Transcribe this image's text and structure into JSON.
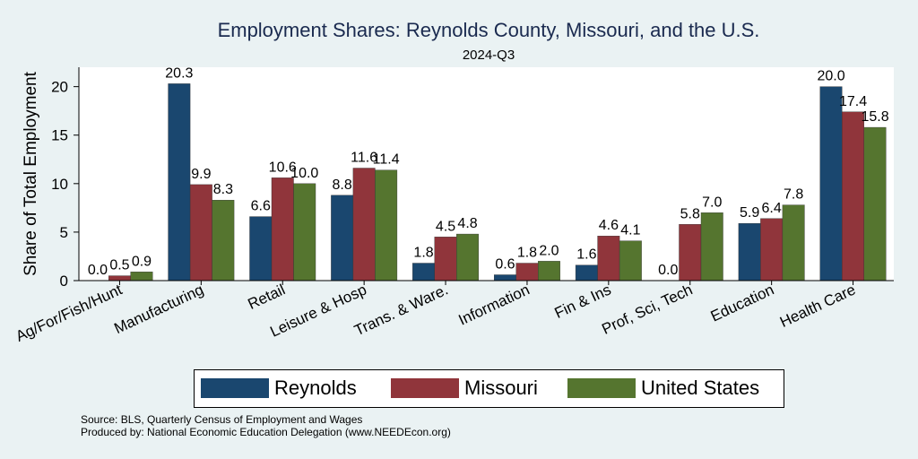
{
  "chart_data": {
    "type": "bar",
    "title": "Employment Shares: Reynolds County, Missouri, and the U.S.",
    "subtitle": "2024-Q3",
    "ylabel": "Share of Total Employment",
    "xlabel": "",
    "ylim": [
      0,
      22
    ],
    "yticks": [
      0,
      5,
      10,
      15,
      20
    ],
    "categories": [
      "Ag/For/Fish/Hunt",
      "Manufacturing",
      "Retail",
      "Leisure & Hosp",
      "Trans. & Ware.",
      "Information",
      "Fin & Ins",
      "Prof, Sci, Tech",
      "Education",
      "Health Care"
    ],
    "series": [
      {
        "name": "Reynolds",
        "color": "#1a476f",
        "values": [
          0.0,
          20.3,
          6.6,
          8.8,
          1.8,
          0.6,
          1.6,
          0.0,
          5.9,
          20.0
        ]
      },
      {
        "name": "Missouri",
        "color": "#90353b",
        "values": [
          0.5,
          9.9,
          10.6,
          11.6,
          4.5,
          1.8,
          4.6,
          5.8,
          6.4,
          17.4
        ]
      },
      {
        "name": "United States",
        "color": "#55752f",
        "values": [
          0.9,
          8.3,
          10.0,
          11.4,
          4.8,
          2.0,
          4.1,
          7.0,
          7.8,
          15.8
        ]
      }
    ],
    "legend_position": "bottom",
    "grid": false
  },
  "source": {
    "line1": "Source: BLS, Quarterly Census of Employment and Wages",
    "line2": "Produced by: National Economic Education Delegation (www.NEEDEcon.org)"
  }
}
